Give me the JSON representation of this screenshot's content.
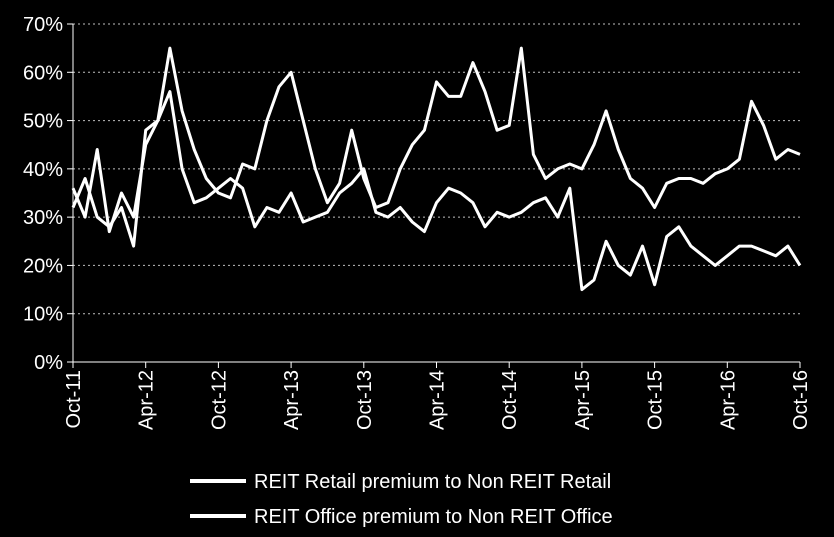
{
  "chart_data": {
    "type": "line",
    "title": "",
    "xlabel": "",
    "ylabel": "",
    "ylim": [
      0,
      70
    ],
    "yticks": [
      "0%",
      "10%",
      "20%",
      "30%",
      "40%",
      "50%",
      "60%",
      "70%"
    ],
    "xlim": [
      "2011-10",
      "2016-10"
    ],
    "xticks": [
      "Oct-11",
      "Apr-12",
      "Oct-12",
      "Apr-13",
      "Oct-13",
      "Apr-14",
      "Oct-14",
      "Apr-15",
      "Oct-15",
      "Apr-16",
      "Oct-16"
    ],
    "grid": "horizontal-dotted",
    "legend_position": "bottom",
    "colors": {
      "background": "#000000",
      "series": "#ffffff",
      "grid": "#bfbfbf"
    },
    "series": [
      {
        "name": "REIT Retail premium to Non REIT Retail",
        "x": [
          "2011-10",
          "2011-11",
          "2011-12",
          "2012-01",
          "2012-02",
          "2012-03",
          "2012-04",
          "2012-05",
          "2012-06",
          "2012-07",
          "2012-08",
          "2012-09",
          "2012-10",
          "2012-11",
          "2012-12",
          "2013-01",
          "2013-02",
          "2013-03",
          "2013-04",
          "2013-05",
          "2013-06",
          "2013-07",
          "2013-08",
          "2013-09",
          "2013-10",
          "2013-11",
          "2013-12",
          "2014-01",
          "2014-02",
          "2014-03",
          "2014-04",
          "2014-05",
          "2014-06",
          "2014-07",
          "2014-08",
          "2014-09",
          "2014-10",
          "2014-11",
          "2014-12",
          "2015-01",
          "2015-02",
          "2015-03",
          "2015-04",
          "2015-05",
          "2015-06",
          "2015-07",
          "2015-08",
          "2015-09",
          "2015-10",
          "2015-11",
          "2015-12",
          "2016-01",
          "2016-02",
          "2016-03",
          "2016-04",
          "2016-05",
          "2016-06",
          "2016-07",
          "2016-08",
          "2016-09",
          "2016-10"
        ],
        "values": [
          36,
          30,
          44,
          27,
          35,
          30,
          45,
          50,
          65,
          52,
          44,
          38,
          35,
          34,
          41,
          40,
          50,
          57,
          60,
          50,
          40,
          33,
          37,
          48,
          38,
          32,
          33,
          40,
          45,
          48,
          58,
          55,
          55,
          62,
          56,
          48,
          49,
          65,
          43,
          38,
          40,
          41,
          40,
          45,
          52,
          44,
          38,
          36,
          32,
          37,
          38,
          38,
          37,
          39,
          40,
          42,
          54,
          49,
          42,
          44,
          43
        ]
      },
      {
        "name": "REIT Office premium to Non REIT Office",
        "x": [
          "2011-10",
          "2011-11",
          "2011-12",
          "2012-01",
          "2012-02",
          "2012-03",
          "2012-04",
          "2012-05",
          "2012-06",
          "2012-07",
          "2012-08",
          "2012-09",
          "2012-10",
          "2012-11",
          "2012-12",
          "2013-01",
          "2013-02",
          "2013-03",
          "2013-04",
          "2013-05",
          "2013-06",
          "2013-07",
          "2013-08",
          "2013-09",
          "2013-10",
          "2013-11",
          "2013-12",
          "2014-01",
          "2014-02",
          "2014-03",
          "2014-04",
          "2014-05",
          "2014-06",
          "2014-07",
          "2014-08",
          "2014-09",
          "2014-10",
          "2014-11",
          "2014-12",
          "2015-01",
          "2015-02",
          "2015-03",
          "2015-04",
          "2015-05",
          "2015-06",
          "2015-07",
          "2015-08",
          "2015-09",
          "2015-10",
          "2015-11",
          "2015-12",
          "2016-01",
          "2016-02",
          "2016-03",
          "2016-04",
          "2016-05",
          "2016-06",
          "2016-07",
          "2016-08",
          "2016-09",
          "2016-10"
        ],
        "values": [
          32,
          38,
          30,
          28,
          32,
          24,
          48,
          50,
          56,
          40,
          33,
          34,
          36,
          38,
          36,
          28,
          32,
          31,
          35,
          29,
          30,
          31,
          35,
          37,
          40,
          31,
          30,
          32,
          29,
          27,
          33,
          36,
          35,
          33,
          28,
          31,
          30,
          31,
          33,
          34,
          30,
          36,
          15,
          17,
          25,
          20,
          18,
          24,
          16,
          26,
          28,
          24,
          22,
          20,
          22,
          24,
          24,
          23,
          22,
          24,
          20
        ]
      }
    ]
  }
}
